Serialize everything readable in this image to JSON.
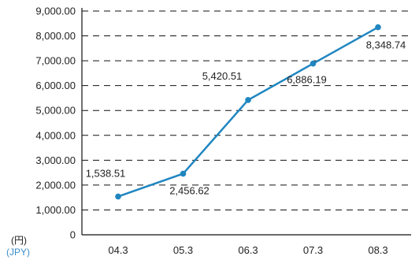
{
  "units": {
    "primary": "(円)",
    "secondary": "(JPY)",
    "secondary_color": "#3a8ec9"
  },
  "colors": {
    "line": "#1f86c0",
    "marker": "#1f86c0",
    "axis": "#111111",
    "grid": "#111111",
    "text": "#222222"
  },
  "chart_data": {
    "type": "line",
    "categories": [
      "04.3",
      "05.3",
      "06.3",
      "07.3",
      "08.3"
    ],
    "values": [
      1538.51,
      2456.62,
      5420.51,
      6886.19,
      8348.74
    ],
    "data_labels": [
      "1,538.51",
      "2,456.62",
      "5,420.51",
      "6,886.19",
      "8,348.74"
    ],
    "ylim": [
      0,
      9000
    ],
    "y_ticks": [
      0,
      1000,
      2000,
      3000,
      4000,
      5000,
      6000,
      7000,
      8000,
      9000
    ],
    "y_tick_labels": [
      "0",
      "1,000.00",
      "2,000.00",
      "3,000.00",
      "4,000.00",
      "5,000.00",
      "6,000.00",
      "7,000.00",
      "8,000.00",
      "9,000.00"
    ],
    "grid": "dashed horizontal",
    "legend": "none"
  }
}
